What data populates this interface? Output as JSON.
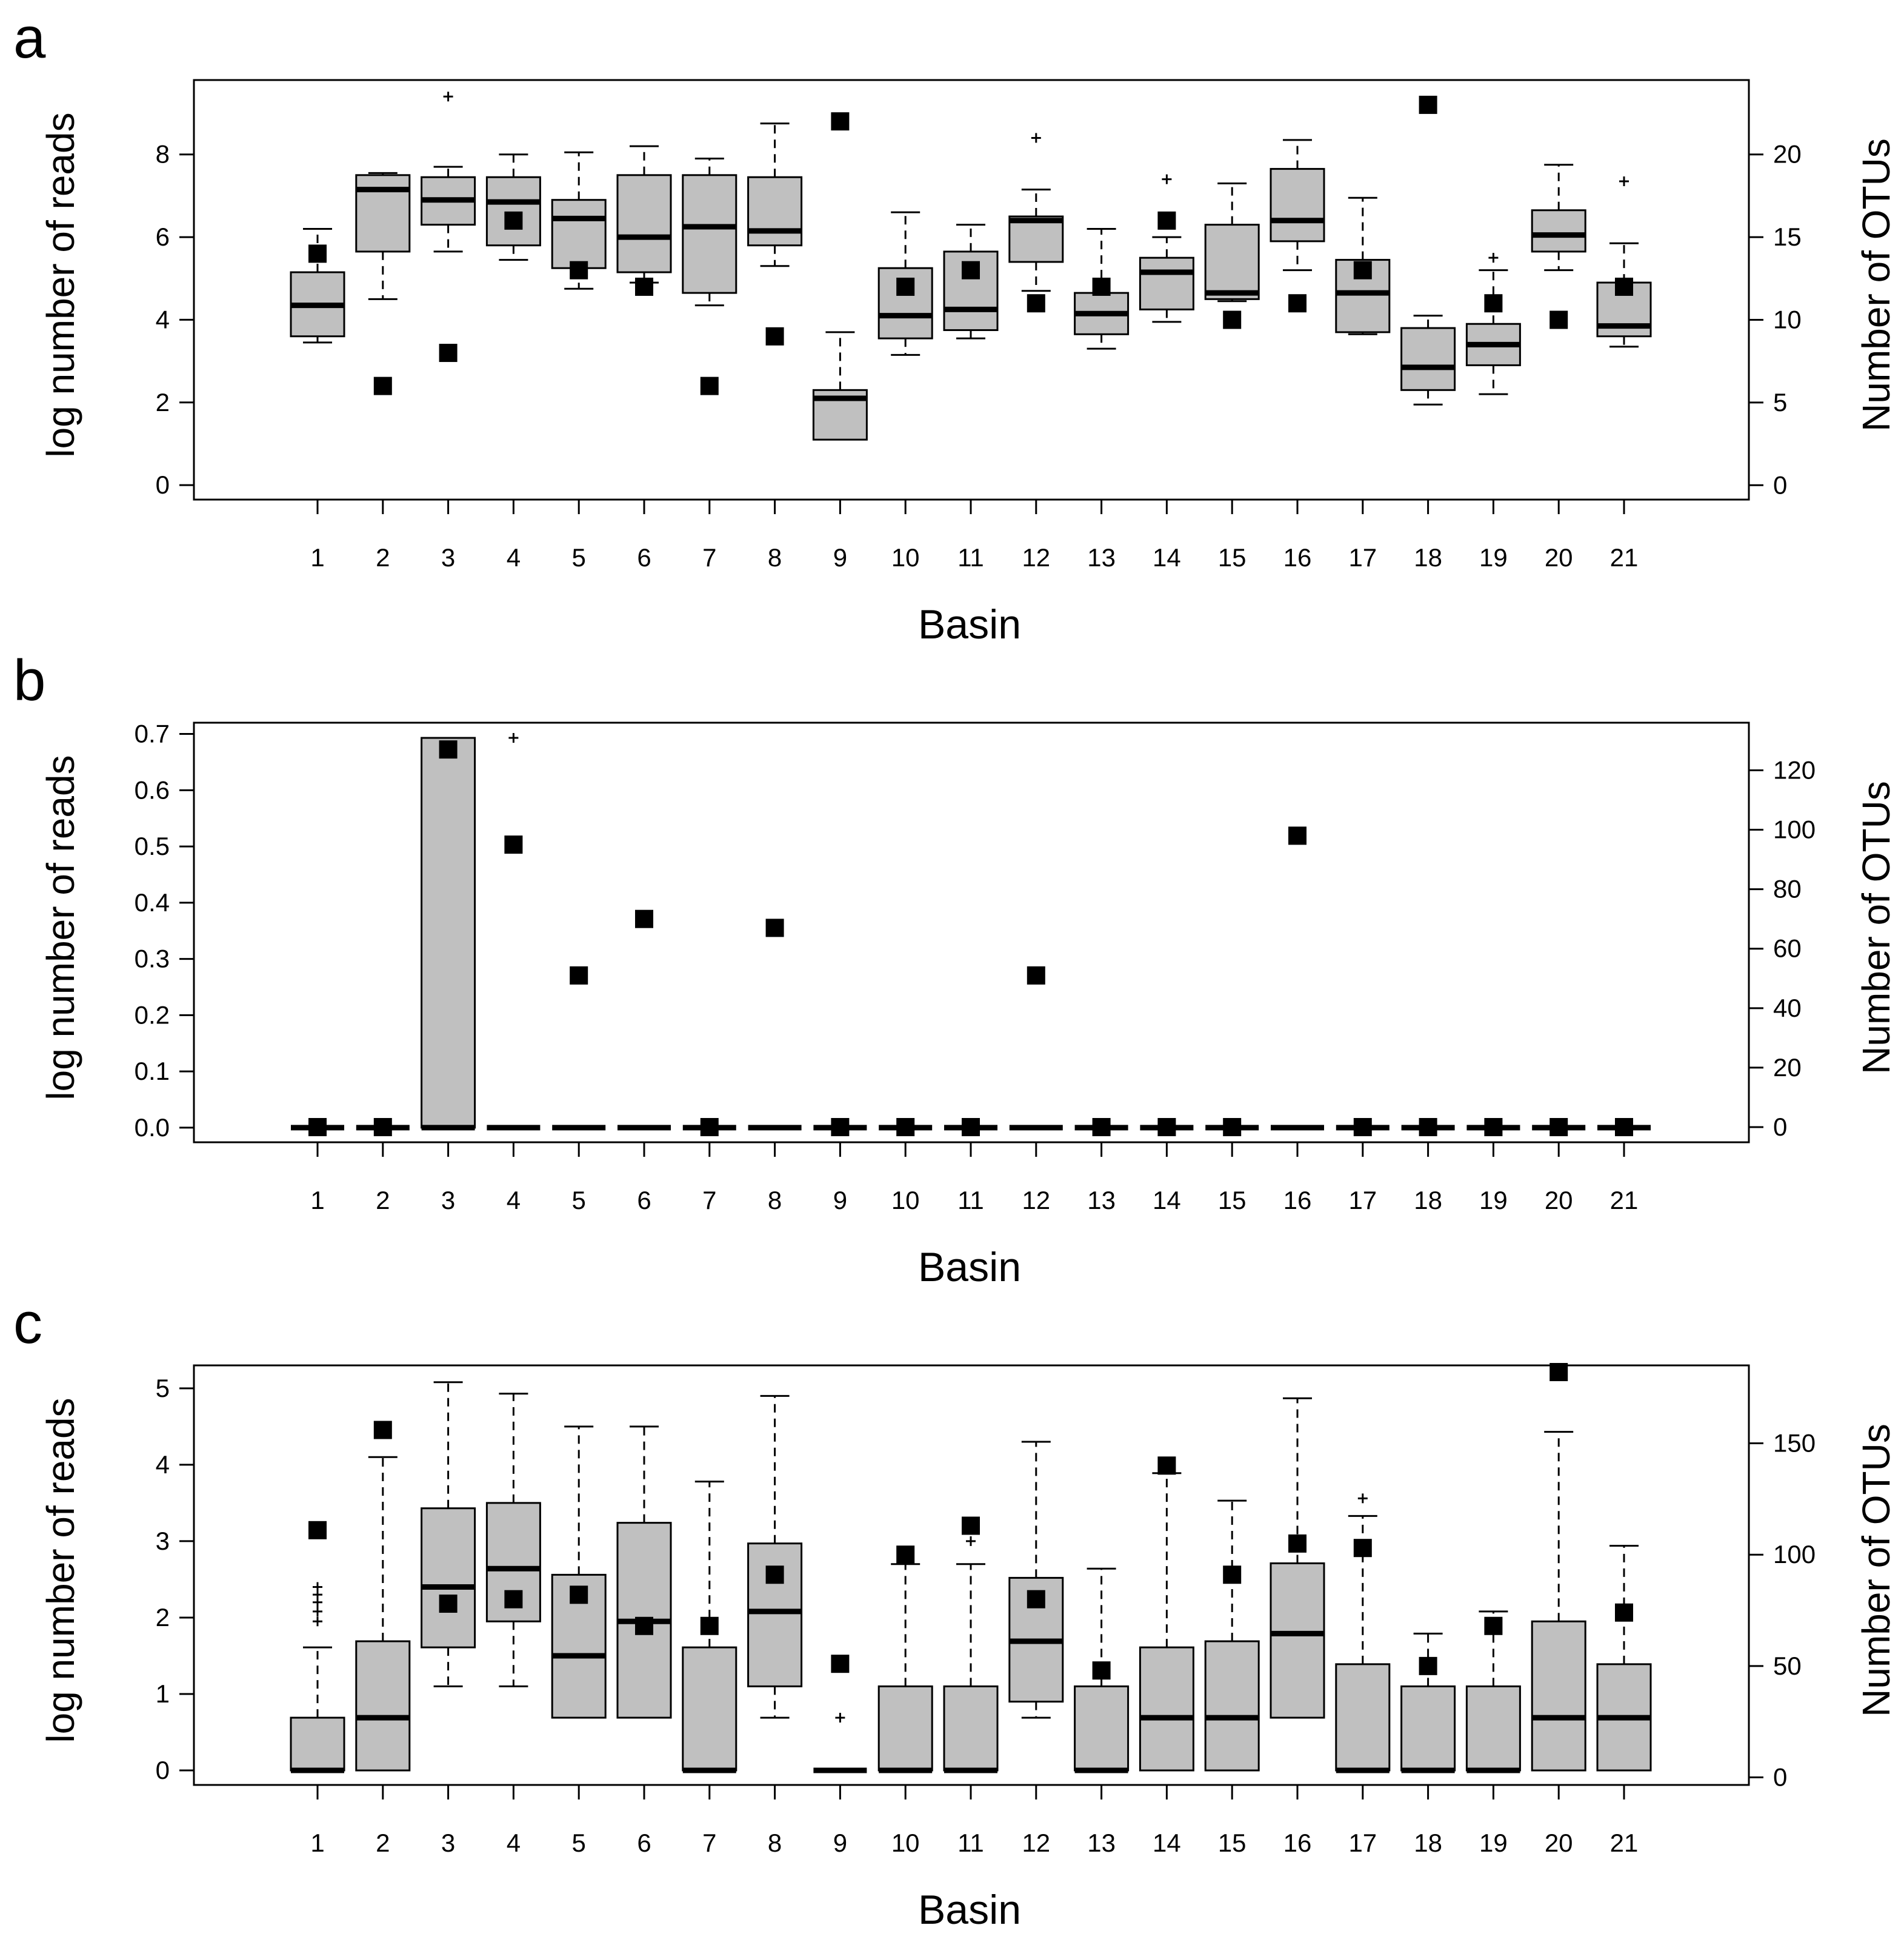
{
  "figure": {
    "colors": {
      "box_fill": "#c0c0c0",
      "stroke": "#000000",
      "background": "#ffffff"
    }
  },
  "chart_data": [
    {
      "panel_label": "a",
      "type": "boxplot",
      "xlabel": "Basin",
      "ylabel_left": "log number of reads",
      "ylabel_right": "Number of OTUs",
      "categories": [
        "1",
        "2",
        "3",
        "4",
        "5",
        "6",
        "7",
        "8",
        "9",
        "10",
        "11",
        "12",
        "13",
        "14",
        "15",
        "16",
        "17",
        "18",
        "19",
        "20",
        "21"
      ],
      "ylim_left": [
        -0.35,
        9.8
      ],
      "yticks_left": [
        0,
        2,
        4,
        6,
        8
      ],
      "ylim_right": [
        -0.87,
        24.5
      ],
      "yticks_right": [
        0,
        5,
        10,
        15,
        20
      ],
      "boxes": [
        {
          "lw": 3.45,
          "q1": 3.6,
          "med": 4.35,
          "q3": 5.15,
          "uw": 6.2,
          "out": []
        },
        {
          "lw": 4.5,
          "q1": 5.65,
          "med": 7.15,
          "q3": 7.5,
          "uw": 7.55,
          "out": []
        },
        {
          "lw": 5.65,
          "q1": 6.3,
          "med": 6.9,
          "q3": 7.45,
          "uw": 7.7,
          "out": [
            9.4
          ]
        },
        {
          "lw": 5.45,
          "q1": 5.8,
          "med": 6.85,
          "q3": 7.45,
          "uw": 8.0,
          "out": []
        },
        {
          "lw": 4.75,
          "q1": 5.25,
          "med": 6.45,
          "q3": 6.9,
          "uw": 8.05,
          "out": []
        },
        {
          "lw": 4.9,
          "q1": 5.15,
          "med": 6.0,
          "q3": 7.5,
          "uw": 8.2,
          "out": []
        },
        {
          "lw": 4.35,
          "q1": 4.65,
          "med": 6.25,
          "q3": 7.5,
          "uw": 7.9,
          "out": []
        },
        {
          "lw": 5.3,
          "q1": 5.8,
          "med": 6.15,
          "q3": 7.45,
          "uw": 8.75,
          "out": []
        },
        {
          "lw": 1.1,
          "q1": 1.1,
          "med": 2.1,
          "q3": 2.3,
          "uw": 3.7,
          "out": []
        },
        {
          "lw": 3.15,
          "q1": 3.55,
          "med": 4.1,
          "q3": 5.25,
          "uw": 6.6,
          "out": []
        },
        {
          "lw": 3.55,
          "q1": 3.75,
          "med": 4.25,
          "q3": 5.65,
          "uw": 6.3,
          "out": []
        },
        {
          "lw": 4.7,
          "q1": 5.4,
          "med": 6.4,
          "q3": 6.5,
          "uw": 7.15,
          "out": [
            8.4
          ]
        },
        {
          "lw": 3.3,
          "q1": 3.65,
          "med": 4.15,
          "q3": 4.65,
          "uw": 6.2,
          "out": []
        },
        {
          "lw": 3.95,
          "q1": 4.25,
          "med": 5.15,
          "q3": 5.5,
          "uw": 6.0,
          "out": [
            7.4
          ]
        },
        {
          "lw": 4.45,
          "q1": 4.5,
          "med": 4.65,
          "q3": 6.3,
          "uw": 7.3,
          "out": []
        },
        {
          "lw": 5.2,
          "q1": 5.9,
          "med": 6.4,
          "q3": 7.65,
          "uw": 8.35,
          "out": []
        },
        {
          "lw": 3.65,
          "q1": 3.7,
          "med": 4.65,
          "q3": 5.45,
          "uw": 6.95,
          "out": []
        },
        {
          "lw": 1.95,
          "q1": 2.3,
          "med": 2.85,
          "q3": 3.8,
          "uw": 4.1,
          "out": []
        },
        {
          "lw": 2.2,
          "q1": 2.9,
          "med": 3.4,
          "q3": 3.9,
          "uw": 5.2,
          "out": [
            5.5
          ]
        },
        {
          "lw": 5.2,
          "q1": 5.65,
          "med": 6.05,
          "q3": 6.65,
          "uw": 7.75,
          "out": []
        },
        {
          "lw": 3.35,
          "q1": 3.6,
          "med": 3.85,
          "q3": 4.9,
          "uw": 5.85,
          "out": [
            7.35
          ]
        }
      ],
      "otus": [
        14,
        6,
        8,
        16,
        13,
        12,
        6,
        9,
        22,
        12,
        13,
        11,
        12,
        16,
        10,
        11,
        13,
        23,
        11,
        10,
        12
      ]
    },
    {
      "panel_label": "b",
      "type": "boxplot",
      "xlabel": "Basin",
      "ylabel_left": "log number of reads",
      "ylabel_right": "Number of OTUs",
      "categories": [
        "1",
        "2",
        "3",
        "4",
        "5",
        "6",
        "7",
        "8",
        "9",
        "10",
        "11",
        "12",
        "13",
        "14",
        "15",
        "16",
        "17",
        "18",
        "19",
        "20",
        "21"
      ],
      "ylim_left": [
        -0.026,
        0.72
      ],
      "yticks_left": [
        0.0,
        0.1,
        0.2,
        0.3,
        0.4,
        0.5,
        0.6,
        0.7
      ],
      "ylim_right": [
        -5.1,
        136
      ],
      "yticks_right": [
        0,
        20,
        40,
        60,
        80,
        100,
        120
      ],
      "boxes": [
        {
          "lw": 0,
          "q1": 0,
          "med": 0,
          "q3": 0,
          "uw": 0,
          "out": []
        },
        {
          "lw": 0,
          "q1": 0,
          "med": 0,
          "q3": 0,
          "uw": 0,
          "out": []
        },
        {
          "lw": 0,
          "q1": 0,
          "med": 0,
          "q3": 0.693,
          "uw": 0.693,
          "out": []
        },
        {
          "lw": 0,
          "q1": 0,
          "med": 0,
          "q3": 0,
          "uw": 0,
          "out": [
            0.693
          ]
        },
        {
          "lw": 0,
          "q1": 0,
          "med": 0,
          "q3": 0,
          "uw": 0,
          "out": []
        },
        {
          "lw": 0,
          "q1": 0,
          "med": 0,
          "q3": 0,
          "uw": 0,
          "out": []
        },
        {
          "lw": 0,
          "q1": 0,
          "med": 0,
          "q3": 0,
          "uw": 0,
          "out": []
        },
        {
          "lw": 0,
          "q1": 0,
          "med": 0,
          "q3": 0,
          "uw": 0,
          "out": []
        },
        {
          "lw": 0,
          "q1": 0,
          "med": 0,
          "q3": 0,
          "uw": 0,
          "out": []
        },
        {
          "lw": 0,
          "q1": 0,
          "med": 0,
          "q3": 0,
          "uw": 0,
          "out": []
        },
        {
          "lw": 0,
          "q1": 0,
          "med": 0,
          "q3": 0,
          "uw": 0,
          "out": []
        },
        {
          "lw": 0,
          "q1": 0,
          "med": 0,
          "q3": 0,
          "uw": 0,
          "out": []
        },
        {
          "lw": 0,
          "q1": 0,
          "med": 0,
          "q3": 0,
          "uw": 0,
          "out": []
        },
        {
          "lw": 0,
          "q1": 0,
          "med": 0,
          "q3": 0,
          "uw": 0,
          "out": []
        },
        {
          "lw": 0,
          "q1": 0,
          "med": 0,
          "q3": 0,
          "uw": 0,
          "out": []
        },
        {
          "lw": 0,
          "q1": 0,
          "med": 0,
          "q3": 0,
          "uw": 0,
          "out": []
        },
        {
          "lw": 0,
          "q1": 0,
          "med": 0,
          "q3": 0,
          "uw": 0,
          "out": []
        },
        {
          "lw": 0,
          "q1": 0,
          "med": 0,
          "q3": 0,
          "uw": 0,
          "out": []
        },
        {
          "lw": 0,
          "q1": 0,
          "med": 0,
          "q3": 0,
          "uw": 0,
          "out": []
        },
        {
          "lw": 0,
          "q1": 0,
          "med": 0,
          "q3": 0,
          "uw": 0,
          "out": []
        },
        {
          "lw": 0,
          "q1": 0,
          "med": 0,
          "q3": 0,
          "uw": 0,
          "out": []
        }
      ],
      "otus": [
        0,
        0,
        127,
        95,
        51,
        70,
        0,
        67,
        0,
        0,
        0,
        51,
        0,
        0,
        0,
        98,
        0,
        0,
        0,
        0,
        0
      ]
    },
    {
      "panel_label": "c",
      "type": "boxplot",
      "xlabel": "Basin",
      "ylabel_left": "log number of reads",
      "ylabel_right": "Number of OTUs",
      "categories": [
        "1",
        "2",
        "3",
        "4",
        "5",
        "6",
        "7",
        "8",
        "9",
        "10",
        "11",
        "12",
        "13",
        "14",
        "15",
        "16",
        "17",
        "18",
        "19",
        "20",
        "21"
      ],
      "ylim_left": [
        -0.19,
        5.3
      ],
      "yticks_left": [
        0,
        1,
        2,
        3,
        4,
        5
      ],
      "ylim_right": [
        -3.4,
        185
      ],
      "yticks_right": [
        0,
        50,
        100,
        150
      ],
      "boxes": [
        {
          "lw": 0,
          "q1": 0,
          "med": 0,
          "q3": 0.69,
          "uw": 1.61,
          "out": [
            1.95,
            2.08,
            2.2,
            2.3,
            2.4
          ]
        },
        {
          "lw": 0,
          "q1": 0,
          "med": 0.69,
          "q3": 1.69,
          "uw": 4.1,
          "out": []
        },
        {
          "lw": 1.1,
          "q1": 1.61,
          "med": 2.4,
          "q3": 3.43,
          "uw": 5.08,
          "out": []
        },
        {
          "lw": 1.1,
          "q1": 1.95,
          "med": 2.64,
          "q3": 3.5,
          "uw": 4.93,
          "out": []
        },
        {
          "lw": 0.69,
          "q1": 0.69,
          "med": 1.5,
          "q3": 2.56,
          "uw": 4.5,
          "out": []
        },
        {
          "lw": 0.69,
          "q1": 0.69,
          "med": 1.95,
          "q3": 3.24,
          "uw": 4.5,
          "out": []
        },
        {
          "lw": 0,
          "q1": 0,
          "med": 0,
          "q3": 1.61,
          "uw": 3.78,
          "out": []
        },
        {
          "lw": 0.69,
          "q1": 1.1,
          "med": 2.08,
          "q3": 2.97,
          "uw": 4.9,
          "out": []
        },
        {
          "lw": 0,
          "q1": 0,
          "med": 0,
          "q3": 0,
          "uw": 0,
          "out": [
            0.69
          ]
        },
        {
          "lw": 0,
          "q1": 0,
          "med": 0,
          "q3": 1.1,
          "uw": 2.7,
          "out": []
        },
        {
          "lw": 0,
          "q1": 0,
          "med": 0,
          "q3": 1.1,
          "uw": 2.7,
          "out": [
            3.0
          ]
        },
        {
          "lw": 0.69,
          "q1": 0.9,
          "med": 1.69,
          "q3": 2.52,
          "uw": 4.3,
          "out": []
        },
        {
          "lw": 0,
          "q1": 0,
          "med": 0,
          "q3": 1.1,
          "uw": 2.64,
          "out": []
        },
        {
          "lw": 0,
          "q1": 0,
          "med": 0.69,
          "q3": 1.61,
          "uw": 3.89,
          "out": []
        },
        {
          "lw": 0,
          "q1": 0,
          "med": 0.69,
          "q3": 1.69,
          "uw": 3.53,
          "out": []
        },
        {
          "lw": 0.69,
          "q1": 0.69,
          "med": 1.79,
          "q3": 2.71,
          "uw": 4.87,
          "out": []
        },
        {
          "lw": 0,
          "q1": 0,
          "med": 0,
          "q3": 1.39,
          "uw": 3.33,
          "out": [
            3.56
          ]
        },
        {
          "lw": 0,
          "q1": 0,
          "med": 0,
          "q3": 1.1,
          "uw": 1.79,
          "out": []
        },
        {
          "lw": 0,
          "q1": 0,
          "med": 0,
          "q3": 1.1,
          "uw": 2.08,
          "out": []
        },
        {
          "lw": 0,
          "q1": 0,
          "med": 0.69,
          "q3": 1.95,
          "uw": 4.43,
          "out": []
        },
        {
          "lw": 0,
          "q1": 0,
          "med": 0.69,
          "q3": 1.39,
          "uw": 2.94,
          "out": []
        }
      ],
      "otus": [
        111,
        156,
        78,
        80,
        82,
        68,
        68,
        91,
        51,
        100,
        113,
        80,
        48,
        140,
        91,
        105,
        103,
        50,
        68,
        182,
        74
      ]
    }
  ]
}
